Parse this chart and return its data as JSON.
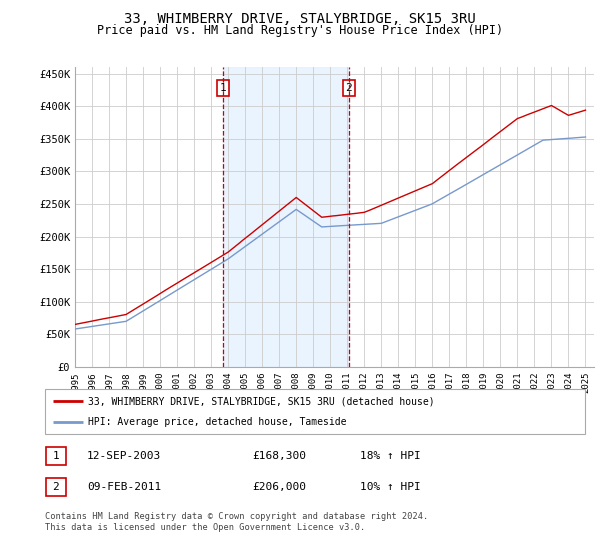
{
  "title": "33, WHIMBERRY DRIVE, STALYBRIDGE, SK15 3RU",
  "subtitle": "Price paid vs. HM Land Registry's House Price Index (HPI)",
  "title_fontsize": 10,
  "subtitle_fontsize": 8.5,
  "ylabel_ticks": [
    "£0",
    "£50K",
    "£100K",
    "£150K",
    "£200K",
    "£250K",
    "£300K",
    "£350K",
    "£400K",
    "£450K"
  ],
  "ytick_vals": [
    0,
    50000,
    100000,
    150000,
    200000,
    250000,
    300000,
    350000,
    400000,
    450000
  ],
  "ylim": [
    0,
    460000
  ],
  "xlim_start": 1995.0,
  "xlim_end": 2025.5,
  "grid_color": "#cccccc",
  "vline1_x": 2003.7,
  "vline2_x": 2011.1,
  "vline_color": "#cc0000",
  "shade_color": "#ddeeff",
  "legend_line1": "33, WHIMBERRY DRIVE, STALYBRIDGE, SK15 3RU (detached house)",
  "legend_line2": "HPI: Average price, detached house, Tameside",
  "red_line_color": "#cc0000",
  "blue_line_color": "#7799cc",
  "table_row1": [
    "1",
    "12-SEP-2003",
    "£168,300",
    "18% ↑ HPI"
  ],
  "table_row2": [
    "2",
    "09-FEB-2011",
    "£206,000",
    "10% ↑ HPI"
  ],
  "footer": "Contains HM Land Registry data © Crown copyright and database right 2024.\nThis data is licensed under the Open Government Licence v3.0."
}
